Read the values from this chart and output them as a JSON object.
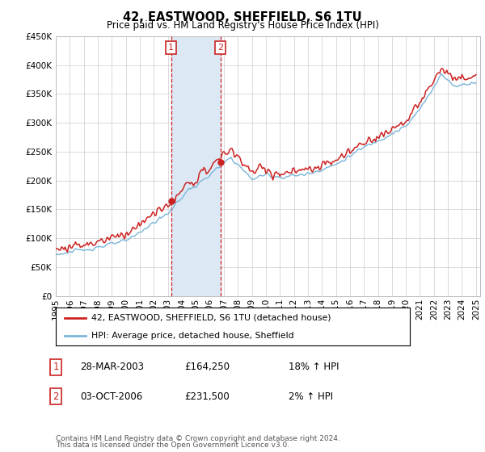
{
  "title": "42, EASTWOOD, SHEFFIELD, S6 1TU",
  "subtitle": "Price paid vs. HM Land Registry's House Price Index (HPI)",
  "legend_line1": "42, EASTWOOD, SHEFFIELD, S6 1TU (detached house)",
  "legend_line2": "HPI: Average price, detached house, Sheffield",
  "transaction1_date": "28-MAR-2003",
  "transaction1_price": "£164,250",
  "transaction1_hpi": "18% ↑ HPI",
  "transaction2_date": "03-OCT-2006",
  "transaction2_price": "£231,500",
  "transaction2_hpi": "2% ↑ HPI",
  "footnote_line1": "Contains HM Land Registry data © Crown copyright and database right 2024.",
  "footnote_line2": "This data is licensed under the Open Government Licence v3.0.",
  "hpi_color": "#7ab5d9",
  "price_color": "#cc2222",
  "shade_color": "#dce9f5",
  "ylim": [
    0,
    450000
  ],
  "yticks": [
    0,
    50000,
    100000,
    150000,
    200000,
    250000,
    300000,
    350000,
    400000,
    450000
  ],
  "t1_year": 2003.24,
  "t2_year": 2006.75,
  "t1_price": 164250,
  "t2_price": 231500
}
